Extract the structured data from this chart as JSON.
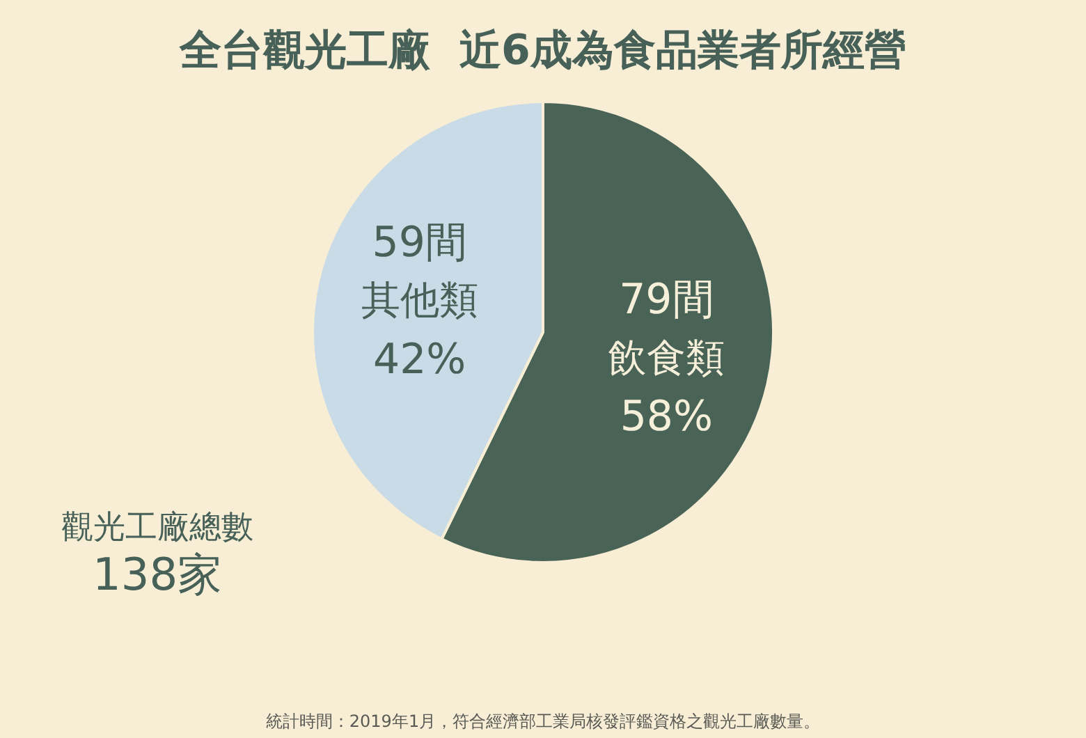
{
  "chart_data": {
    "type": "pie",
    "title": "全台觀光工廠  近6成為食品業者所經營",
    "categories": [
      "飲食類",
      "其他類"
    ],
    "values": [
      79,
      59
    ],
    "colors": [
      "#4a6357",
      "#c9dbe6"
    ],
    "value_labels": [
      "79間",
      "59間"
    ],
    "annotations": [
      {
        "text": "58%",
        "x": "飲食類"
      },
      {
        "text": "42%",
        "x": "其他類"
      },
      "觀光工廠總數",
      "138家",
      "統計時間：2019年1月，符合經濟部工業局核發評鑑資格之觀光工廠數量。"
    ],
    "legend": false
  }
}
